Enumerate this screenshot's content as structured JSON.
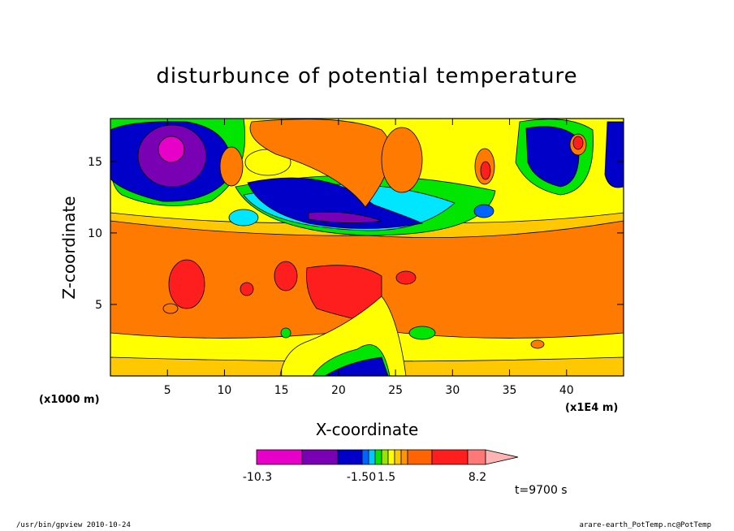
{
  "chart_data": {
    "type": "heatmap",
    "title": "disturbunce of potential temperature",
    "xlabel": "X-coordinate",
    "ylabel": "Z-coordinate",
    "x_unit_left": "(x1000 m)",
    "x_unit_right": "(x1E4 m)",
    "xlim": [
      0,
      45
    ],
    "ylim": [
      0,
      18
    ],
    "x_ticks": [
      "5",
      "10",
      "15",
      "20",
      "25",
      "30",
      "35",
      "40"
    ],
    "x_tick_values": [
      5,
      10,
      15,
      20,
      25,
      30,
      35,
      40
    ],
    "y_ticks": [
      "5",
      "10",
      "15"
    ],
    "y_tick_values": [
      5,
      10,
      15
    ],
    "colorbar": {
      "labels": [
        "-10.3",
        "-1.50",
        "1.5",
        "8.2"
      ],
      "min": -10.3,
      "max": 8.2,
      "colors": [
        "#e600c8",
        "#7a00b4",
        "#0000c8",
        "#0064ff",
        "#00c8ff",
        "#00e600",
        "#96e600",
        "#ffff00",
        "#ffc800",
        "#ff9600",
        "#ff6400",
        "#ff1e1e",
        "#ff7878",
        "#ffb4b4"
      ]
    },
    "time_label": "t=9700 s",
    "field_colors": {
      "magenta": "#e600c8",
      "purple": "#7a00b4",
      "navy": "#0000c8",
      "blue": "#0064ff",
      "cyan": "#00e6ff",
      "green": "#00e600",
      "yellowgreen": "#96e600",
      "yellow": "#ffff00",
      "gold": "#ffc800",
      "orange": "#ff7a00",
      "red": "#ff1e1e",
      "pink": "#ff7878"
    }
  },
  "footer": {
    "left": "/usr/bin/gpview  2010-10-24",
    "right": "arare-earth_PotTemp.nc@PotTemp"
  }
}
